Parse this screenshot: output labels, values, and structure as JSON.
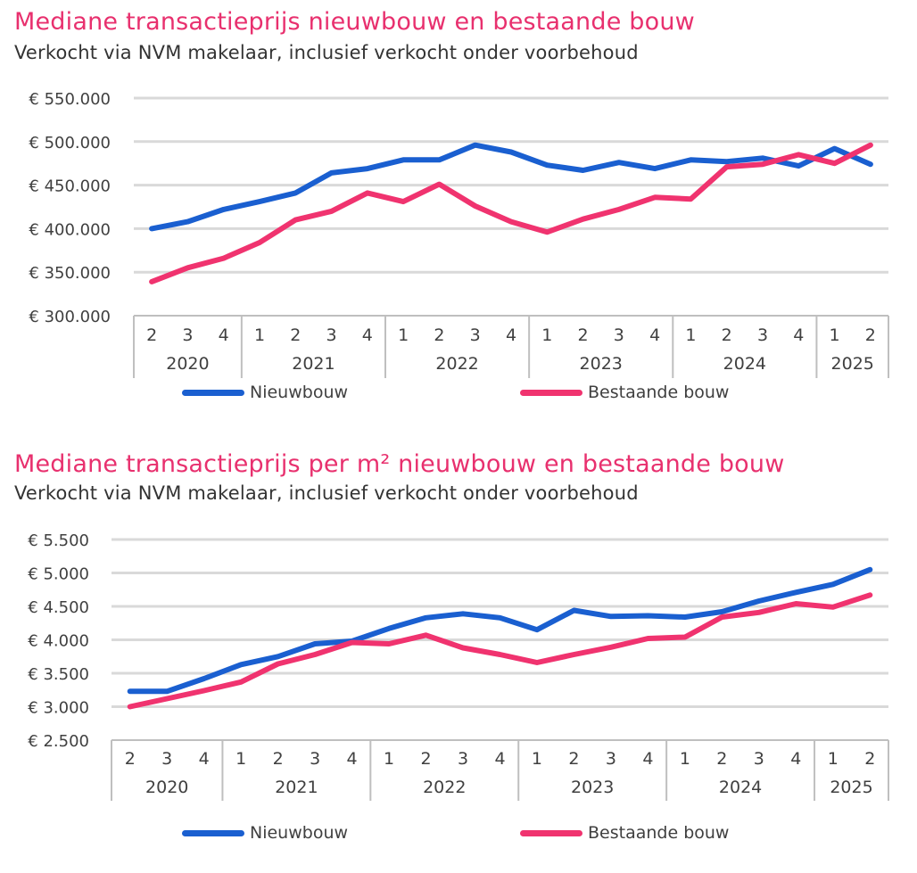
{
  "colors": {
    "accent": "#e8306e",
    "nieuwbouw": "#1a5fd0",
    "bestaande": "#f0336f",
    "grid": "#d9d9d9",
    "axis": "#bfbfbf",
    "text": "#404040"
  },
  "chart_data": [
    {
      "type": "line",
      "title": "Mediane transactieprijs nieuwbouw en bestaande bouw",
      "subtitle": "Verkocht via NVM makelaar, inclusief verkocht onder voorbehoud",
      "categories": [
        "2",
        "3",
        "4",
        "1",
        "2",
        "3",
        "4",
        "1",
        "2",
        "3",
        "4",
        "1",
        "2",
        "3",
        "4",
        "1",
        "2",
        "3",
        "4",
        "1",
        "2"
      ],
      "year_groups": [
        {
          "label": "2020",
          "count": 3
        },
        {
          "label": "2021",
          "count": 4
        },
        {
          "label": "2022",
          "count": 4
        },
        {
          "label": "2023",
          "count": 4
        },
        {
          "label": "2024",
          "count": 4
        },
        {
          "label": "2025",
          "count": 2
        }
      ],
      "y_ticks": [
        300000,
        350000,
        400000,
        450000,
        500000,
        550000
      ],
      "y_tick_labels": [
        "€ 300.000",
        "€ 350.000",
        "€ 400.000",
        "€ 450.000",
        "€ 500.000",
        "€ 550.000"
      ],
      "ylim": [
        300000,
        550000
      ],
      "series": [
        {
          "name": "Nieuwbouw",
          "values": [
            400000,
            408000,
            422000,
            431000,
            441000,
            464000,
            469000,
            479000,
            479000,
            496000,
            488000,
            473000,
            467000,
            476000,
            469000,
            479000,
            477000,
            481000,
            472000,
            492000,
            474000
          ]
        },
        {
          "name": "Bestaande bouw",
          "values": [
            339000,
            355000,
            366000,
            384000,
            410000,
            420000,
            441000,
            431000,
            451000,
            426000,
            408000,
            396000,
            411000,
            422000,
            436000,
            434000,
            471000,
            474000,
            485000,
            475000,
            496000
          ]
        }
      ],
      "legend": [
        "Nieuwbouw",
        "Bestaande bouw"
      ],
      "legend_position": "bottom"
    },
    {
      "type": "line",
      "title": "Mediane transactieprijs per m² nieuwbouw en bestaande bouw",
      "subtitle": "Verkocht via NVM makelaar, inclusief verkocht onder voorbehoud",
      "categories": [
        "2",
        "3",
        "4",
        "1",
        "2",
        "3",
        "4",
        "1",
        "2",
        "3",
        "4",
        "1",
        "2",
        "3",
        "4",
        "1",
        "2",
        "3",
        "4",
        "1",
        "2"
      ],
      "year_groups": [
        {
          "label": "2020",
          "count": 3
        },
        {
          "label": "2021",
          "count": 4
        },
        {
          "label": "2022",
          "count": 4
        },
        {
          "label": "2023",
          "count": 4
        },
        {
          "label": "2024",
          "count": 4
        },
        {
          "label": "2025",
          "count": 2
        }
      ],
      "y_ticks": [
        2500,
        3000,
        3500,
        4000,
        4500,
        5000,
        5500
      ],
      "y_tick_labels": [
        "€ 2.500",
        "€ 3.000",
        "€ 3.500",
        "€ 4.000",
        "€ 4.500",
        "€ 5.000",
        "€ 5.500"
      ],
      "ylim": [
        2500,
        5500
      ],
      "series": [
        {
          "name": "Nieuwbouw",
          "values": [
            3230,
            3230,
            3420,
            3630,
            3750,
            3940,
            3980,
            4170,
            4330,
            4390,
            4330,
            4150,
            4440,
            4350,
            4360,
            4340,
            4420,
            4580,
            4710,
            4830,
            5050
          ]
        },
        {
          "name": "Bestaande bouw",
          "values": [
            3000,
            3120,
            3240,
            3370,
            3640,
            3780,
            3960,
            3940,
            4070,
            3880,
            3780,
            3660,
            3780,
            3890,
            4020,
            4040,
            4340,
            4410,
            4540,
            4490,
            4670
          ]
        }
      ],
      "legend": [
        "Nieuwbouw",
        "Bestaande bouw"
      ],
      "legend_position": "bottom"
    }
  ]
}
